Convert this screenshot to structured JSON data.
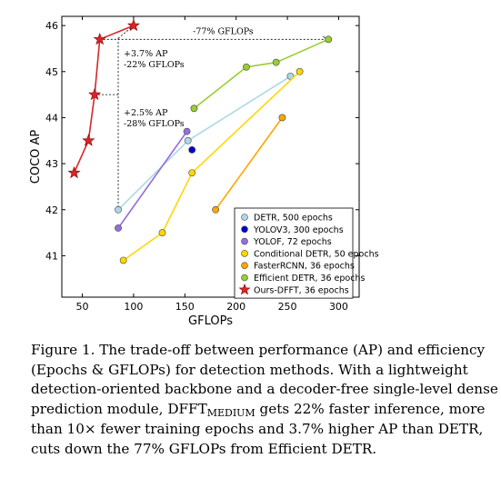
{
  "chart_data": {
    "type": "scatter",
    "xlabel": "GFLOPs",
    "ylabel": "COCO AP",
    "xlim": [
      30,
      320
    ],
    "ylim": [
      40.1,
      46.2
    ],
    "xticks": [
      50,
      100,
      150,
      200,
      250,
      300
    ],
    "yticks": [
      41,
      42,
      43,
      44,
      45,
      46
    ],
    "grid": false,
    "legend_position": "bottom-right",
    "series": [
      {
        "name": "DETR, 500 epochs",
        "color": "#add8e6",
        "marker": "circle",
        "connected": true,
        "points": [
          [
            85,
            42.0
          ],
          [
            153,
            43.5
          ],
          [
            253,
            44.9
          ]
        ]
      },
      {
        "name": "YOLOV3, 300 epochs",
        "color": "#0000cd",
        "marker": "circle",
        "connected": false,
        "points": [
          [
            157,
            43.3
          ]
        ]
      },
      {
        "name": "YOLOF, 72 epochs",
        "color": "#9370db",
        "marker": "circle",
        "connected": true,
        "points": [
          [
            85,
            41.6
          ],
          [
            152,
            43.7
          ]
        ]
      },
      {
        "name": "Conditional DETR, 50 epochs",
        "color": "#ffd700",
        "marker": "circle",
        "connected": true,
        "points": [
          [
            90,
            40.9
          ],
          [
            128,
            41.5
          ],
          [
            157,
            42.8
          ],
          [
            262,
            45.0
          ]
        ]
      },
      {
        "name": "FasterRCNN, 36 epochs",
        "color": "#ffa500",
        "marker": "circle",
        "connected": true,
        "points": [
          [
            180,
            42.0
          ],
          [
            245,
            44.0
          ]
        ]
      },
      {
        "name": "Efficient DETR, 36 epochs",
        "color": "#9acd32",
        "marker": "circle",
        "connected": true,
        "points": [
          [
            159,
            44.2
          ],
          [
            210,
            45.1
          ],
          [
            239,
            45.2
          ],
          [
            290,
            45.7
          ]
        ]
      },
      {
        "name": "Ours-DFFT, 36 epochs",
        "color": "#d62728",
        "marker": "star",
        "connected": true,
        "points": [
          [
            42,
            42.8
          ],
          [
            56,
            43.5
          ],
          [
            62,
            44.5
          ],
          [
            67,
            45.7
          ],
          [
            100,
            46.0
          ]
        ]
      }
    ],
    "annotations": [
      {
        "text": "-77% GFLOPs"
      },
      {
        "lines": [
          "+3.7% AP",
          "-22% GFLOPs"
        ]
      },
      {
        "lines": [
          "+2.5% AP",
          "-28% GFLOPs"
        ]
      }
    ]
  },
  "caption": {
    "lines": [
      [
        "Figure 1. The trade-off between performance (AP) and efficiency"
      ],
      [
        "(Epochs & GFLOPs) for detection methods.  With a lightweight"
      ],
      [
        "detection-oriented backbone and a decoder-free single-level dense"
      ],
      [
        "prediction module, DFFT",
        "MEDIUM",
        " gets 22% faster inference, more"
      ],
      [
        "than 10× fewer training epochs and 3.7% higher AP than DETR,"
      ],
      [
        "cuts down the 77% GFLOPs from Efficient DETR."
      ]
    ]
  }
}
